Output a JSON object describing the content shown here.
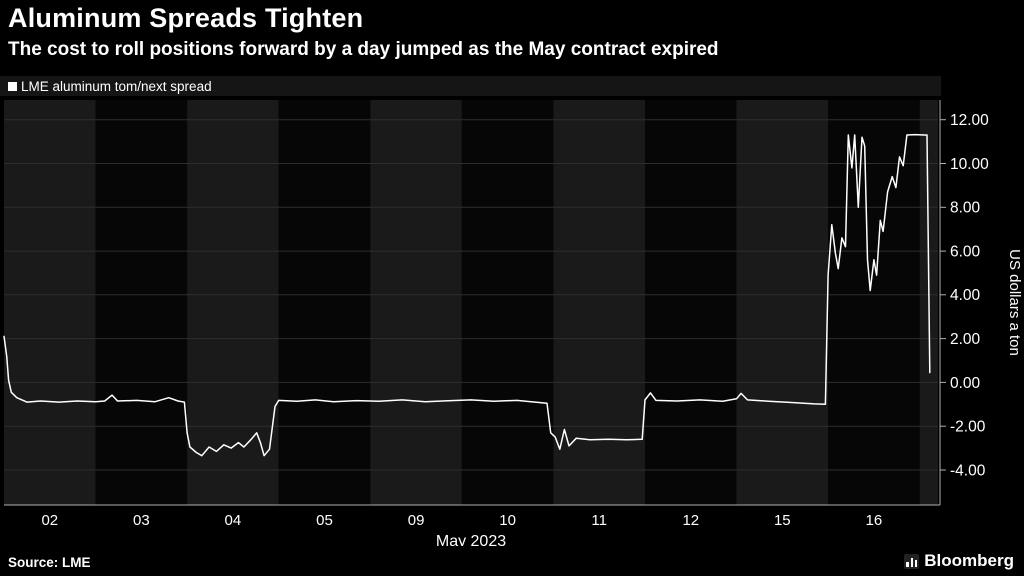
{
  "header": {
    "title": "Aluminum Spreads Tighten",
    "subtitle": "The cost to roll positions forward by a day jumped as the May contract expired"
  },
  "legend": {
    "label": "LME aluminum tom/next spread",
    "marker_color": "#ffffff"
  },
  "footer": {
    "source": "Source: LME",
    "brand": "Bloomberg"
  },
  "colors": {
    "background": "#000000",
    "band_light": "#1a1a1a",
    "band_dark": "#060606",
    "gridline": "#2e2e2e",
    "axis": "#b0b0b0",
    "line": "#ffffff",
    "text": "#ffffff"
  },
  "chart_data": {
    "type": "line",
    "title": "Aluminum Spreads Tighten",
    "subtitle": "The cost to roll positions forward by a day jumped as the May contract expired",
    "legend": [
      "LME aluminum tom/next spread"
    ],
    "x_axis": {
      "label": "May 2023",
      "categories": [
        "02",
        "03",
        "04",
        "05",
        "09",
        "10",
        "11",
        "12",
        "15",
        "16"
      ],
      "bands_total": 10.2
    },
    "y_axis": {
      "label": "US dollars a ton",
      "side": "right",
      "ylim": [
        -5.6,
        12.9
      ],
      "ticks": [
        {
          "value": 12,
          "label": "12.00"
        },
        {
          "value": 10,
          "label": "10.00"
        },
        {
          "value": 8,
          "label": "8.00"
        },
        {
          "value": 6,
          "label": "6.00"
        },
        {
          "value": 4,
          "label": "4.00"
        },
        {
          "value": 2,
          "label": "2.00"
        },
        {
          "value": 0,
          "label": "0.00"
        },
        {
          "value": -2,
          "label": "-2.00"
        },
        {
          "value": -4,
          "label": "-4.00"
        }
      ]
    },
    "series": [
      {
        "name": "LME aluminum tom/next spread",
        "color": "#ffffff",
        "points": [
          [
            0.0,
            2.1
          ],
          [
            0.03,
            1.2
          ],
          [
            0.05,
            0.1
          ],
          [
            0.08,
            -0.45
          ],
          [
            0.14,
            -0.7
          ],
          [
            0.25,
            -0.9
          ],
          [
            0.4,
            -0.85
          ],
          [
            0.6,
            -0.9
          ],
          [
            0.8,
            -0.85
          ],
          [
            1.0,
            -0.88
          ],
          [
            1.1,
            -0.85
          ],
          [
            1.18,
            -0.58
          ],
          [
            1.24,
            -0.85
          ],
          [
            1.45,
            -0.82
          ],
          [
            1.65,
            -0.88
          ],
          [
            1.8,
            -0.7
          ],
          [
            1.9,
            -0.85
          ],
          [
            1.97,
            -0.9
          ],
          [
            2.0,
            -2.3
          ],
          [
            2.03,
            -2.95
          ],
          [
            2.1,
            -3.2
          ],
          [
            2.16,
            -3.35
          ],
          [
            2.24,
            -2.95
          ],
          [
            2.32,
            -3.15
          ],
          [
            2.4,
            -2.85
          ],
          [
            2.48,
            -3.0
          ],
          [
            2.56,
            -2.75
          ],
          [
            2.62,
            -2.95
          ],
          [
            2.7,
            -2.6
          ],
          [
            2.76,
            -2.3
          ],
          [
            2.8,
            -2.75
          ],
          [
            2.84,
            -3.35
          ],
          [
            2.9,
            -3.05
          ],
          [
            2.96,
            -1.1
          ],
          [
            3.0,
            -0.82
          ],
          [
            3.2,
            -0.86
          ],
          [
            3.4,
            -0.8
          ],
          [
            3.6,
            -0.88
          ],
          [
            3.85,
            -0.83
          ],
          [
            4.1,
            -0.86
          ],
          [
            4.35,
            -0.8
          ],
          [
            4.6,
            -0.88
          ],
          [
            4.85,
            -0.84
          ],
          [
            5.1,
            -0.8
          ],
          [
            5.35,
            -0.86
          ],
          [
            5.6,
            -0.82
          ],
          [
            5.8,
            -0.9
          ],
          [
            5.93,
            -0.95
          ],
          [
            5.97,
            -2.3
          ],
          [
            6.02,
            -2.5
          ],
          [
            6.07,
            -3.05
          ],
          [
            6.12,
            -2.15
          ],
          [
            6.17,
            -2.9
          ],
          [
            6.25,
            -2.55
          ],
          [
            6.4,
            -2.62
          ],
          [
            6.6,
            -2.6
          ],
          [
            6.8,
            -2.62
          ],
          [
            6.97,
            -2.6
          ],
          [
            7.0,
            -0.8
          ],
          [
            7.06,
            -0.48
          ],
          [
            7.12,
            -0.82
          ],
          [
            7.35,
            -0.85
          ],
          [
            7.6,
            -0.8
          ],
          [
            7.85,
            -0.86
          ],
          [
            8.0,
            -0.75
          ],
          [
            8.05,
            -0.5
          ],
          [
            8.12,
            -0.8
          ],
          [
            8.35,
            -0.86
          ],
          [
            8.6,
            -0.92
          ],
          [
            8.85,
            -0.98
          ],
          [
            8.97,
            -1.0
          ],
          [
            9.0,
            4.9
          ],
          [
            9.04,
            7.2
          ],
          [
            9.08,
            5.9
          ],
          [
            9.11,
            5.2
          ],
          [
            9.15,
            6.6
          ],
          [
            9.19,
            6.2
          ],
          [
            9.22,
            11.3
          ],
          [
            9.26,
            9.8
          ],
          [
            9.29,
            11.3
          ],
          [
            9.33,
            8.0
          ],
          [
            9.37,
            11.2
          ],
          [
            9.4,
            10.8
          ],
          [
            9.43,
            5.6
          ],
          [
            9.46,
            4.2
          ],
          [
            9.5,
            5.6
          ],
          [
            9.53,
            4.9
          ],
          [
            9.57,
            7.4
          ],
          [
            9.6,
            6.9
          ],
          [
            9.65,
            8.7
          ],
          [
            9.7,
            9.4
          ],
          [
            9.74,
            8.9
          ],
          [
            9.78,
            10.3
          ],
          [
            9.82,
            9.9
          ],
          [
            9.86,
            11.3
          ],
          [
            9.95,
            11.32
          ],
          [
            10.05,
            11.3
          ],
          [
            10.08,
            11.3
          ],
          [
            10.11,
            0.45
          ]
        ]
      }
    ]
  }
}
